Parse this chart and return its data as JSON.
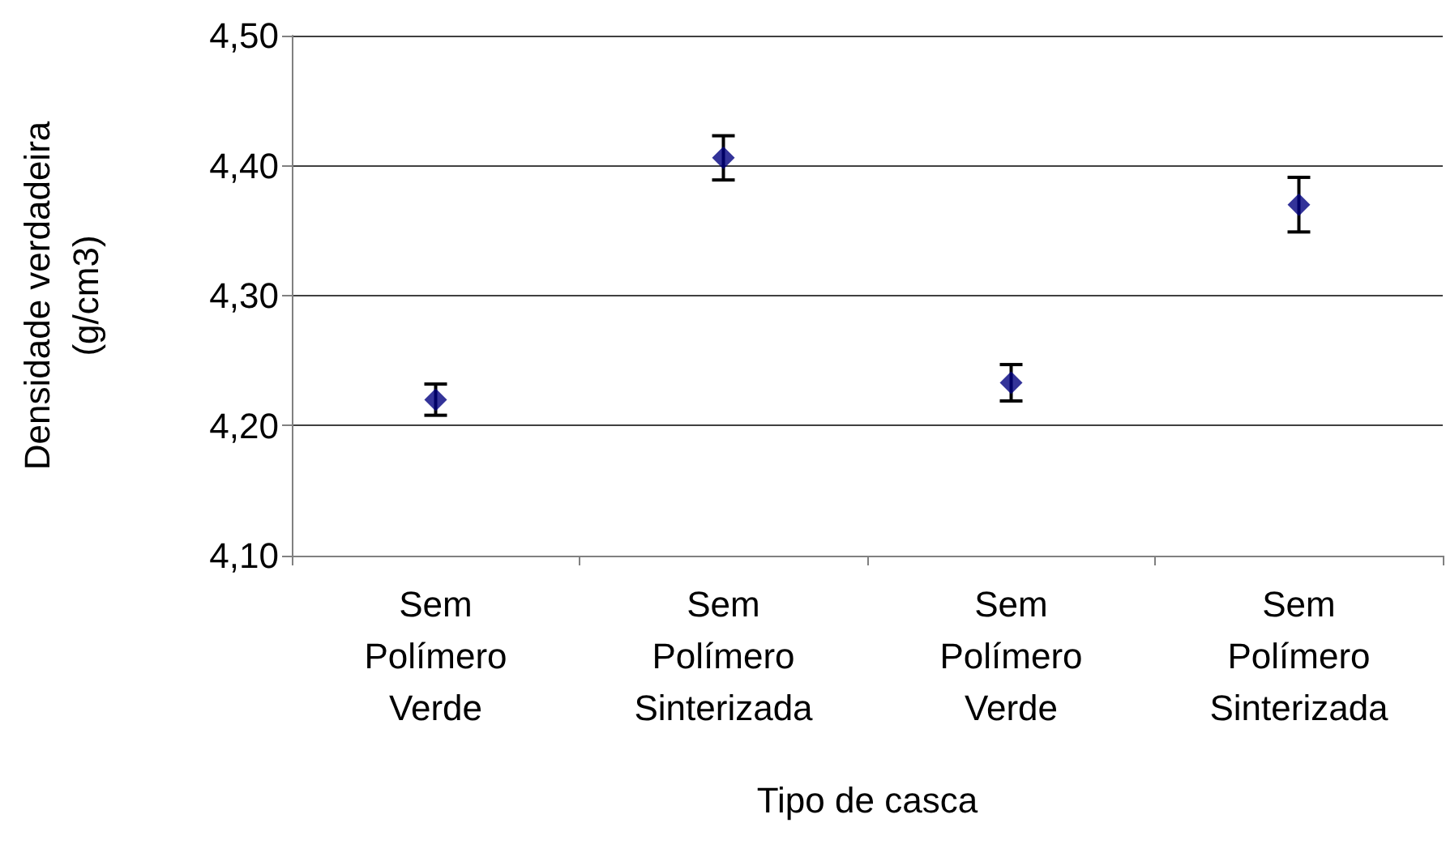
{
  "chart_data": {
    "type": "scatter",
    "xlabel": "Tipo de casca",
    "ylabel": "Densidade verdadeira\n(g/cm3)",
    "categories": [
      "Sem\nPolímero\nVerde",
      "Sem\nPolímero\nSinterizada",
      "Sem\nPolímero\nVerde",
      "Sem\nPolímero\nSinterizada"
    ],
    "series": [
      {
        "color": "#000080",
        "values": [
          4.22,
          4.406,
          4.233,
          4.37
        ],
        "errors": [
          0.012,
          0.017,
          0.014,
          0.021
        ]
      }
    ],
    "ylim": [
      4.1,
      4.5
    ],
    "yticks": [
      {
        "value": 4.1,
        "label": "4,10"
      },
      {
        "value": 4.2,
        "label": "4,20"
      },
      {
        "value": 4.3,
        "label": "4,30"
      },
      {
        "value": 4.4,
        "label": "4,40"
      },
      {
        "value": 4.5,
        "label": "4,50"
      }
    ],
    "grid": "y",
    "marker": "diamond"
  }
}
